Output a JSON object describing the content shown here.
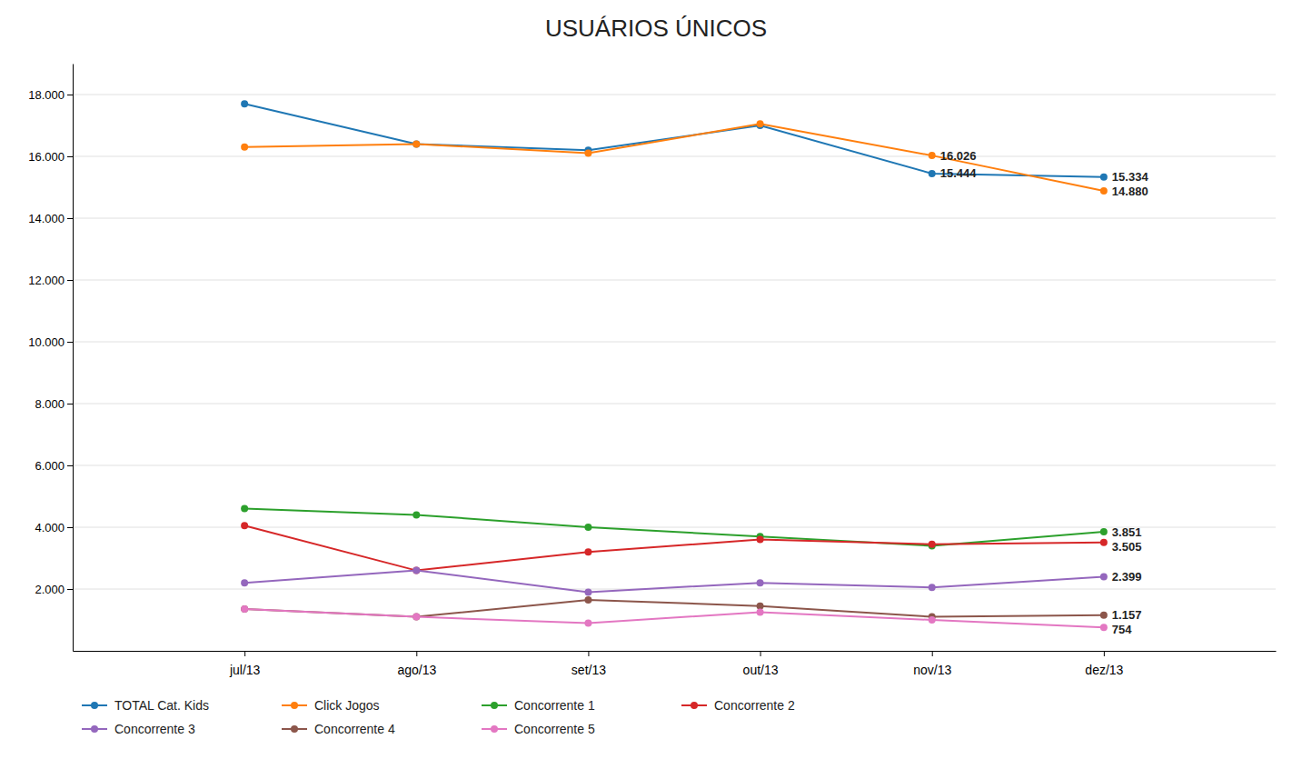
{
  "chart_data": {
    "type": "line",
    "title": "USUÁRIOS ÚNICOS",
    "categories": [
      "jul/13",
      "ago/13",
      "set/13",
      "out/13",
      "nov/13",
      "dez/13"
    ],
    "series": [
      {
        "name": "TOTAL Cat. Kids",
        "values": [
          17700,
          16400,
          16200,
          17000,
          15444,
          15334
        ]
      },
      {
        "name": "Click Jogos",
        "values": [
          16300,
          16400,
          16100,
          17050,
          16026,
          14880
        ]
      },
      {
        "name": "Concorrente 1",
        "values": [
          4600,
          4400,
          4000,
          3700,
          3400,
          3851
        ]
      },
      {
        "name": "Concorrente 2",
        "values": [
          4050,
          2600,
          3200,
          3600,
          3450,
          3505
        ]
      },
      {
        "name": "Concorrente 3",
        "values": [
          2200,
          2600,
          1900,
          2200,
          2050,
          2399
        ]
      },
      {
        "name": "Concorrente 4",
        "values": [
          1350,
          1100,
          1650,
          1450,
          1100,
          1157
        ]
      },
      {
        "name": "Concorrente 5",
        "values": [
          1350,
          1100,
          900,
          1250,
          1000,
          754
        ]
      }
    ],
    "ylim": [
      0,
      19000
    ],
    "yticks": [
      {
        "value": 2000,
        "label": "2.000"
      },
      {
        "value": 4000,
        "label": "4.000"
      },
      {
        "value": 6000,
        "label": "6.000"
      },
      {
        "value": 8000,
        "label": "8.000"
      },
      {
        "value": 10000,
        "label": "10.000"
      },
      {
        "value": 12000,
        "label": "12.000"
      },
      {
        "value": 14000,
        "label": "14.000"
      },
      {
        "value": 16000,
        "label": "16.000"
      },
      {
        "value": 18000,
        "label": "18.000"
      }
    ],
    "grid": true,
    "legend": "bottom",
    "marker": "circle",
    "annotations": [
      {
        "x": "nov/13",
        "y": 16026,
        "label": "16.026"
      },
      {
        "x": "nov/13",
        "y": 15444,
        "label": "15.444"
      },
      {
        "x": "dez/13",
        "y": 15334,
        "label": "15.334"
      },
      {
        "x": "dez/13",
        "y": 14880,
        "label": "14.880"
      },
      {
        "x": "dez/13",
        "y": 3851,
        "label": "3.851"
      },
      {
        "x": "dez/13",
        "y": 3505,
        "label": "3.505"
      },
      {
        "x": "dez/13",
        "y": 2399,
        "label": "2.399"
      },
      {
        "x": "dez/13",
        "y": 1157,
        "label": "1.157"
      },
      {
        "x": "dez/13",
        "y": 754,
        "label": "754"
      }
    ]
  }
}
